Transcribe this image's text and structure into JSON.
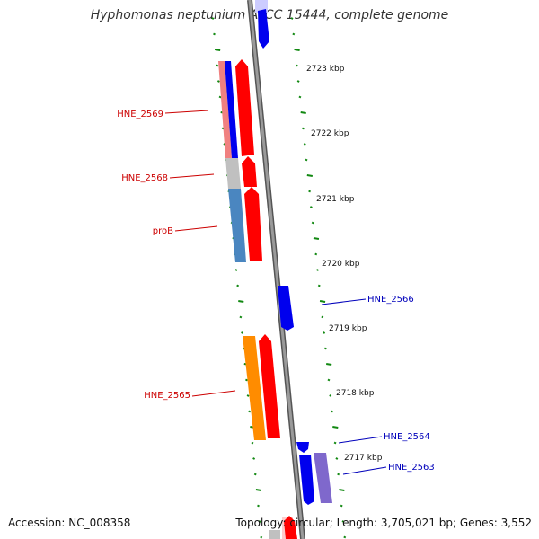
{
  "title": "Hyphomonas neptunium ATCC 15444, complete genome",
  "accession": "Accession: NC_008358",
  "topology": "Topology: circular; Length: 3,705,021 bp; Genes: 3,552",
  "colors": {
    "backbone": "#808080",
    "ticks": "#118811",
    "forward_label": "#cc0000",
    "reverse_label": "#0000bb",
    "forward_cds": "#ff0000",
    "reverse_cds": "#0000ee"
  },
  "scale": [
    {
      "label": "2723 kbp"
    },
    {
      "label": "2722 kbp"
    },
    {
      "label": "2721 kbp"
    },
    {
      "label": "2720 kbp"
    },
    {
      "label": "2719 kbp"
    },
    {
      "label": "2718 kbp"
    },
    {
      "label": "2717 kbp"
    }
  ],
  "gene_labels": [
    {
      "name": "HNE_2569",
      "strand": "forward"
    },
    {
      "name": "HNE_2568",
      "strand": "forward"
    },
    {
      "name": "proB",
      "strand": "forward"
    },
    {
      "name": "HNE_2566",
      "strand": "reverse"
    },
    {
      "name": "HNE_2565",
      "strand": "forward"
    },
    {
      "name": "HNE_2564",
      "strand": "reverse"
    },
    {
      "name": "HNE_2563",
      "strand": "reverse"
    }
  ]
}
